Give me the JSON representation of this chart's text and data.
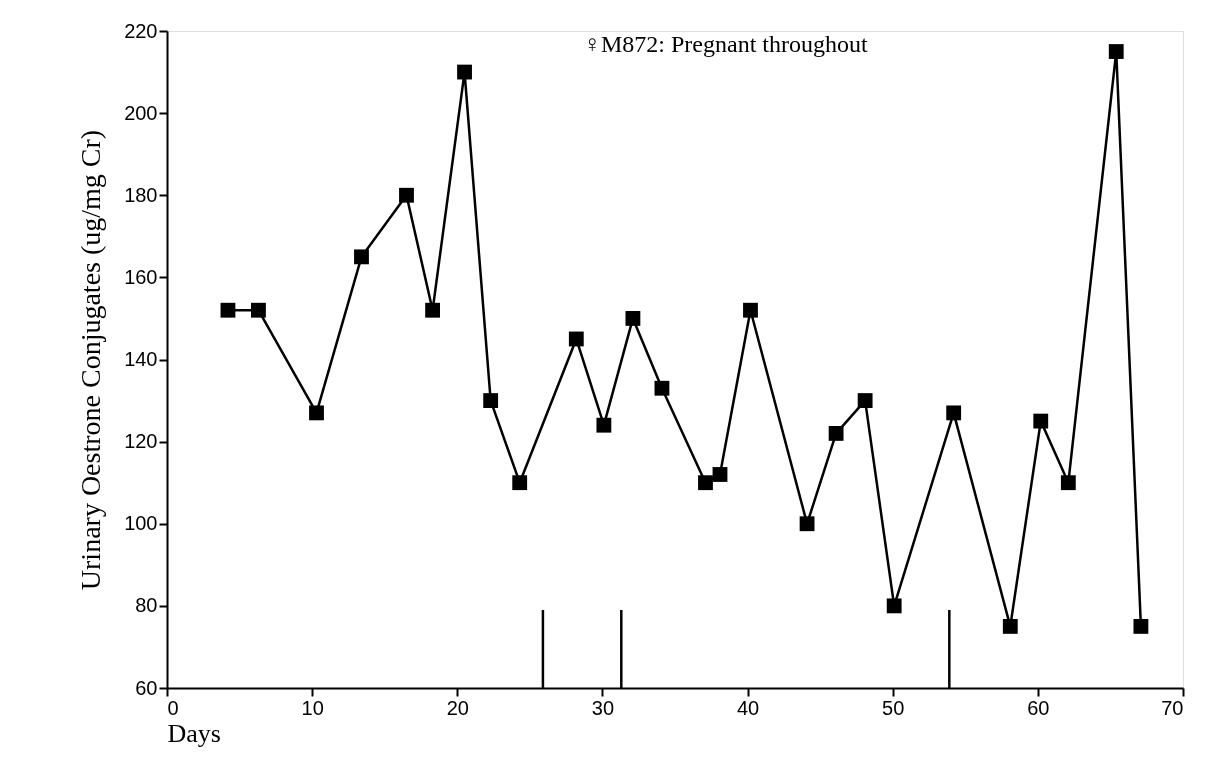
{
  "chart_data": {
    "type": "line",
    "xlabel": "Days",
    "ylabel": "Urinary Oestrone Conjugates (ug/mg Cr)",
    "annotations": [
      "♀M872: Pregnant throughout"
    ],
    "x": [
      4.2,
      6.3,
      10.3,
      13.4,
      16.5,
      18.3,
      20.5,
      22.3,
      24.3,
      28.2,
      30.1,
      32.1,
      34.1,
      37.1,
      38.1,
      40.2,
      44.1,
      46.1,
      48.1,
      50.1,
      54.2,
      58.1,
      60.2,
      62.1,
      65.4,
      67.1
    ],
    "series": [
      {
        "color": "#000000",
        "values": [
          152,
          152,
          127,
          165,
          180,
          152,
          210,
          130,
          110,
          145,
          124,
          150,
          133,
          110,
          112,
          152,
          100,
          122,
          130,
          80,
          127,
          75,
          125,
          110,
          215,
          75
        ]
      }
    ],
    "xlim": [
      0,
      70
    ],
    "xticks": [
      0,
      10,
      20,
      30,
      40,
      50,
      60,
      70
    ],
    "ylim": [
      60,
      220
    ],
    "yticks": [
      60,
      80,
      100,
      120,
      140,
      160,
      180,
      200,
      220
    ],
    "ref_lines": [
      {
        "axis": "x",
        "value": 25.9
      },
      {
        "axis": "x",
        "value": 31.3
      },
      {
        "axis": "x",
        "value": 53.9
      }
    ],
    "grid": false,
    "marker": "square",
    "line_style": "solid"
  }
}
